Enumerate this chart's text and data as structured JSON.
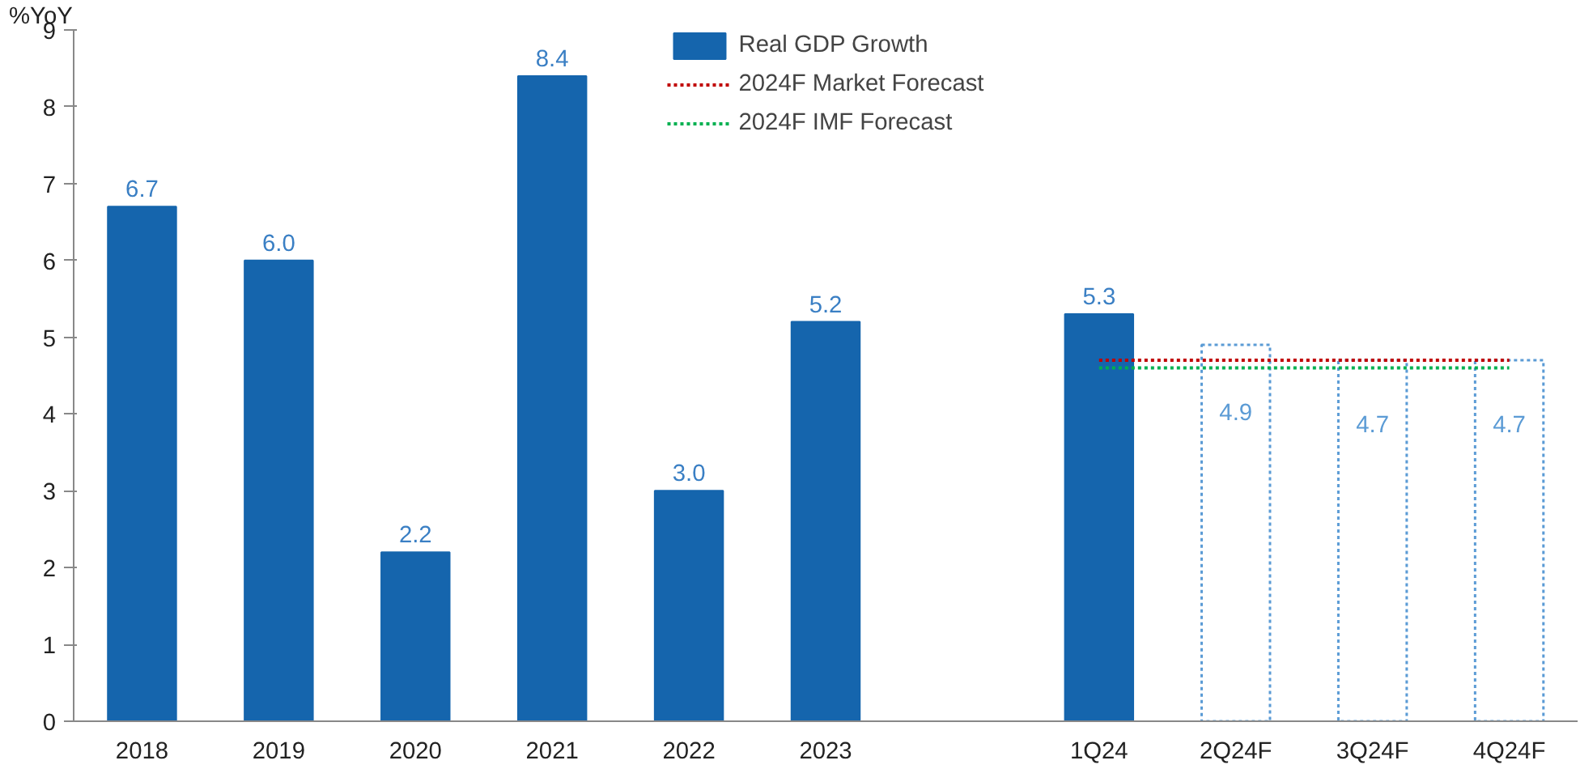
{
  "chart_data": {
    "type": "bar",
    "ylabel": "%YoY",
    "categories": [
      "2018",
      "2019",
      "2020",
      "2021",
      "2022",
      "2023",
      null,
      "1Q24",
      "2Q24F",
      "3Q24F",
      "4Q24F"
    ],
    "series": [
      {
        "name": "Real GDP Growth",
        "color": "#1565ad",
        "values": [
          6.7,
          6.0,
          2.2,
          8.4,
          3.0,
          5.2,
          null,
          5.3,
          null,
          null,
          null
        ],
        "value_labels": [
          "6.7",
          "6.0",
          "2.2",
          "8.4",
          "3.0",
          "5.2",
          null,
          "5.3",
          null,
          null,
          null
        ]
      },
      {
        "color": "#5b9bd5",
        "line_style": "dotted",
        "values": [
          null,
          null,
          null,
          null,
          null,
          null,
          null,
          null,
          4.9,
          4.7,
          4.7
        ],
        "value_labels": [
          null,
          null,
          null,
          null,
          null,
          null,
          null,
          null,
          "4.9",
          "4.7",
          "4.7"
        ]
      },
      {
        "name": "2024F Market Forecast",
        "type": "line",
        "color": "#c00000",
        "line_style": "dotted",
        "marker": "none",
        "x": [
          "1Q24",
          "2Q24F",
          "3Q24F",
          "4Q24F"
        ],
        "values": [
          4.7,
          4.7,
          4.7,
          4.7
        ]
      },
      {
        "name": "2024F IMF Forecast",
        "type": "line",
        "color": "#00b050",
        "line_style": "dotted",
        "marker": "none",
        "x": [
          "1Q24",
          "2Q24F",
          "3Q24F",
          "4Q24F"
        ],
        "values": [
          4.6,
          4.6,
          4.6,
          4.6
        ]
      }
    ],
    "ylim": [
      0,
      9
    ],
    "yticks": [
      0,
      1,
      2,
      3,
      4,
      5,
      6,
      7,
      8,
      9
    ],
    "grid": false,
    "legend": "top"
  }
}
